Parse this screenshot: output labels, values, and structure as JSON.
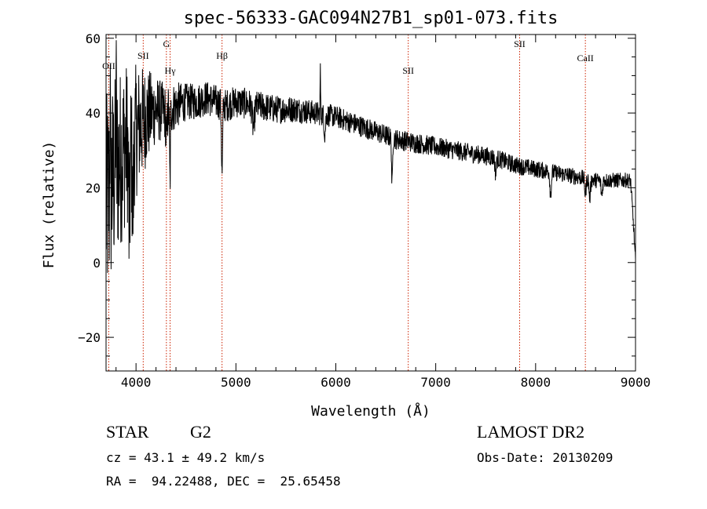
{
  "chart_data": {
    "type": "line",
    "title": "spec-56333-GAC094N27B1_sp01-073.fits",
    "xlabel": "Wavelength (Å)",
    "ylabel": "Flux (relative)",
    "xlim": [
      3700,
      9000
    ],
    "ylim": [
      -29,
      61
    ],
    "xticks": [
      4000,
      5000,
      6000,
      7000,
      8000,
      9000
    ],
    "yticks": [
      -20,
      0,
      20,
      40,
      60
    ],
    "grid": false,
    "line_color": "#000000",
    "marker_color": "#cc2200",
    "lines": [
      {
        "label": "OII",
        "wavelength": 3727
      },
      {
        "label": "SII",
        "wavelength": 4072
      },
      {
        "label": "G",
        "wavelength": 4304
      },
      {
        "label": "Hγ",
        "wavelength": 4341
      },
      {
        "label": "Hβ",
        "wavelength": 4861
      },
      {
        "label": "SII",
        "wavelength": 6725
      },
      {
        "label": "SII",
        "wavelength": 7840
      },
      {
        "label": "CaII",
        "wavelength": 8498
      }
    ],
    "continuum": {
      "x": [
        3700,
        3800,
        3900,
        4000,
        4100,
        4200,
        4300,
        4400,
        4500,
        4600,
        4700,
        4800,
        4900,
        5000,
        5200,
        5400,
        5600,
        5800,
        6000,
        6200,
        6400,
        6600,
        6800,
        7000,
        7200,
        7400,
        7600,
        7800,
        8000,
        8200,
        8400,
        8600,
        8800,
        8950,
        8980,
        9000
      ],
      "y": [
        15,
        25,
        32,
        35,
        39,
        41,
        40,
        42,
        43,
        43,
        44,
        43,
        42,
        43,
        42,
        41,
        41,
        40,
        39,
        37,
        35,
        33,
        32,
        31,
        30,
        29,
        28,
        26,
        25,
        24,
        23,
        22,
        22,
        22,
        10,
        0
      ]
    },
    "noise": [
      {
        "x": 3700,
        "amp": 30
      },
      {
        "x": 4000,
        "amp": 18
      },
      {
        "x": 4200,
        "amp": 9
      },
      {
        "x": 4500,
        "amp": 5
      },
      {
        "x": 6000,
        "amp": 3
      },
      {
        "x": 9000,
        "amp": 2
      }
    ],
    "absorption": [
      {
        "x": 4861,
        "depth": 19,
        "width": 8
      },
      {
        "x": 4340,
        "depth": 20,
        "width": 6
      },
      {
        "x": 4305,
        "depth": 8,
        "width": 8
      },
      {
        "x": 3933,
        "depth": 25,
        "width": 10
      },
      {
        "x": 3968,
        "depth": 20,
        "width": 10
      },
      {
        "x": 6563,
        "depth": 13,
        "width": 7
      },
      {
        "x": 5175,
        "depth": 6,
        "width": 15
      },
      {
        "x": 5890,
        "depth": 5,
        "width": 10
      },
      {
        "x": 7600,
        "depth": 4,
        "width": 10
      },
      {
        "x": 8150,
        "depth": 6,
        "width": 10
      },
      {
        "x": 8498,
        "depth": 4,
        "width": 10
      },
      {
        "x": 8542,
        "depth": 5,
        "width": 10
      },
      {
        "x": 8662,
        "depth": 4,
        "width": 10
      }
    ],
    "spikes": [
      {
        "x": 5845,
        "height": 13
      },
      {
        "x": 3800,
        "height": 30
      },
      {
        "x": 3740,
        "height": 35
      }
    ]
  },
  "info": {
    "class": "STAR",
    "subclass": "G2",
    "survey": "LAMOST DR2",
    "cz": "cz = 43.1 ± 49.2 km/s",
    "obs_date": "Obs-Date: 20130209",
    "coords": "RA =  94.22488, DEC =  25.65458"
  }
}
